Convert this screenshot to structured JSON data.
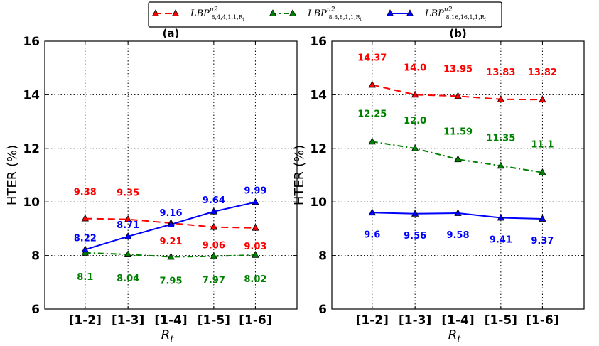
{
  "legend": {
    "entries": [
      {
        "main": "LBP",
        "sup": "u2",
        "sub": "8,4,4,1,1,R",
        "subsub": "t",
        "color": "#ff0000",
        "linestyle": "dashed"
      },
      {
        "main": "LBP",
        "sup": "u2",
        "sub": "8,8,8,1,1,R",
        "subsub": "t",
        "color": "#008000",
        "linestyle": "dashdot"
      },
      {
        "main": "LBP",
        "sup": "u2",
        "sub": "8,16,16,1,1,R",
        "subsub": "t",
        "color": "#0000ff",
        "linestyle": "solid"
      }
    ]
  },
  "chart_data": [
    {
      "type": "line",
      "title": "(a)",
      "xlabel": "R",
      "xlabel_sub": "t",
      "ylabel": "HTER (%)",
      "categories": [
        "[1-2]",
        "[1-3]",
        "[1-4]",
        "[1-5]",
        "[1-6]"
      ],
      "ylim": [
        6,
        16
      ],
      "yticks": [
        6,
        8,
        10,
        12,
        14,
        16
      ],
      "grid": true,
      "series": [
        {
          "name": "LBP^u2_{8,4,4,1,1,R_t}",
          "color": "#ff0000",
          "linestyle": "dashed",
          "values": [
            9.38,
            9.35,
            9.21,
            9.06,
            9.03
          ],
          "labels": [
            "9.38",
            "9.35",
            "9.21",
            "9.06",
            "9.03"
          ]
        },
        {
          "name": "LBP^u2_{8,8,8,1,1,R_t}",
          "color": "#008000",
          "linestyle": "dashdot",
          "values": [
            8.1,
            8.04,
            7.95,
            7.97,
            8.02
          ],
          "labels": [
            "8.1",
            "8.04",
            "7.95",
            "7.97",
            "8.02"
          ]
        },
        {
          "name": "LBP^u2_{8,16,16,1,1,R_t}",
          "color": "#0000ff",
          "linestyle": "solid",
          "values": [
            8.22,
            8.71,
            9.16,
            9.64,
            9.99
          ],
          "labels": [
            "8.22",
            "8.71",
            "9.16",
            "9.64",
            "9.99"
          ]
        }
      ]
    },
    {
      "type": "line",
      "title": "(b)",
      "xlabel": "R",
      "xlabel_sub": "t",
      "ylabel": "HTER (%)",
      "categories": [
        "[1-2]",
        "[1-3]",
        "[1-4]",
        "[1-5]",
        "[1-6]"
      ],
      "ylim": [
        6,
        16
      ],
      "yticks": [
        6,
        8,
        10,
        12,
        14,
        16
      ],
      "grid": true,
      "series": [
        {
          "name": "LBP^u2_{8,4,4,1,1,R_t}",
          "color": "#ff0000",
          "linestyle": "dashed",
          "values": [
            14.37,
            14.0,
            13.95,
            13.83,
            13.82
          ],
          "labels": [
            "14.37",
            "14.0",
            "13.95",
            "13.83",
            "13.82"
          ]
        },
        {
          "name": "LBP^u2_{8,8,8,1,1,R_t}",
          "color": "#008000",
          "linestyle": "dashdot",
          "values": [
            12.25,
            12.0,
            11.59,
            11.35,
            11.1
          ],
          "labels": [
            "12.25",
            "12.0",
            "11.59",
            "11.35",
            "11.1"
          ]
        },
        {
          "name": "LBP^u2_{8,16,16,1,1,R_t}",
          "color": "#0000ff",
          "linestyle": "solid",
          "values": [
            9.6,
            9.56,
            9.58,
            9.41,
            9.37
          ],
          "labels": [
            "9.6",
            "9.56",
            "9.58",
            "9.41",
            "9.37"
          ]
        }
      ]
    }
  ]
}
